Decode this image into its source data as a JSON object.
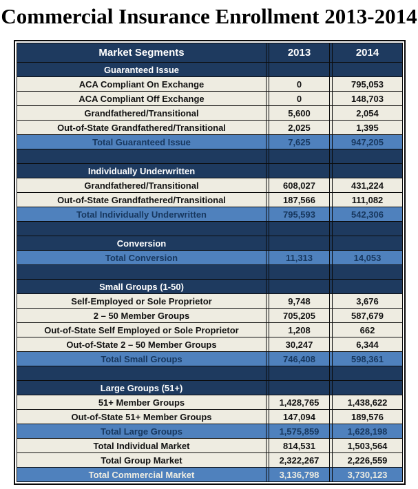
{
  "title": "Commercial Insurance Enrollment 2013-2014",
  "colors": {
    "navy": "#1E3A5F",
    "total_row_blue": "#4F81BD",
    "data_row_cream": "#EEECE1",
    "data_text": "#121212",
    "total_text": "#17375E",
    "grand_total_text": "#EFEDE2",
    "border": "#0B0B0B",
    "header_text": "#FFFFFF"
  },
  "table": {
    "columns": [
      "Market Segments",
      "2013",
      "2014"
    ],
    "rows": [
      {
        "type": "section",
        "label": "Guaranteed Issue",
        "y2013": "",
        "y2014": ""
      },
      {
        "type": "data",
        "label": "ACA Compliant On Exchange",
        "y2013": "0",
        "y2014": "795,053"
      },
      {
        "type": "data",
        "label": "ACA Compliant Off Exchange",
        "y2013": "0",
        "y2014": "148,703"
      },
      {
        "type": "data",
        "label": "Grandfathered/Transitional",
        "y2013": "5,600",
        "y2014": "2,054"
      },
      {
        "type": "data",
        "label": "Out-of-State Grandfathered/Transitional",
        "y2013": "2,025",
        "y2014": "1,395"
      },
      {
        "type": "total",
        "label": "Total Guaranteed Issue",
        "y2013": "7,625",
        "y2014": "947,205"
      },
      {
        "type": "spacer",
        "label": "",
        "y2013": "",
        "y2014": ""
      },
      {
        "type": "section",
        "label": "Individually Underwritten",
        "y2013": "",
        "y2014": ""
      },
      {
        "type": "data",
        "label": "Grandfathered/Transitional",
        "y2013": "608,027",
        "y2014": "431,224"
      },
      {
        "type": "data",
        "label": "Out-of-State Grandfathered/Transitional",
        "y2013": "187,566",
        "y2014": "111,082"
      },
      {
        "type": "total",
        "label": "Total Individually Underwritten",
        "y2013": "795,593",
        "y2014": "542,306"
      },
      {
        "type": "spacer",
        "label": "",
        "y2013": "",
        "y2014": ""
      },
      {
        "type": "section",
        "label": "Conversion",
        "y2013": "",
        "y2014": ""
      },
      {
        "type": "total",
        "label": "Total Conversion",
        "y2013": "11,313",
        "y2014": "14,053"
      },
      {
        "type": "spacer",
        "label": "",
        "y2013": "",
        "y2014": ""
      },
      {
        "type": "section",
        "label": "Small Groups (1-50)",
        "y2013": "",
        "y2014": ""
      },
      {
        "type": "data",
        "label": "Self-Employed or Sole Proprietor",
        "y2013": "9,748",
        "y2014": "3,676"
      },
      {
        "type": "data",
        "label": "2 – 50 Member Groups",
        "y2013": "705,205",
        "y2014": "587,679"
      },
      {
        "type": "data",
        "label": "Out-of-State Self Employed or Sole Proprietor",
        "y2013": "1,208",
        "y2014": "662"
      },
      {
        "type": "data",
        "label": "Out-of-State 2 – 50 Member Groups",
        "y2013": "30,247",
        "y2014": "6,344"
      },
      {
        "type": "total",
        "label": "Total Small Groups",
        "y2013": "746,408",
        "y2014": "598,361"
      },
      {
        "type": "spacer",
        "label": "",
        "y2013": "",
        "y2014": ""
      },
      {
        "type": "section",
        "label": "Large Groups (51+)",
        "y2013": "",
        "y2014": ""
      },
      {
        "type": "data",
        "label": "51+ Member Groups",
        "y2013": "1,428,765",
        "y2014": "1,438,622"
      },
      {
        "type": "data",
        "label": "Out-of-State 51+ Member Groups",
        "y2013": "147,094",
        "y2014": "189,576"
      },
      {
        "type": "total",
        "label": "Total Large Groups",
        "y2013": "1,575,859",
        "y2014": "1,628,198"
      },
      {
        "type": "data",
        "label": "Total Individual Market",
        "y2013": "814,531",
        "y2014": "1,503,564"
      },
      {
        "type": "data",
        "label": "Total Group Market",
        "y2013": "2,322,267",
        "y2014": "2,226,559"
      },
      {
        "type": "grand_total",
        "label": "Total Commercial Market",
        "y2013": "3,136,798",
        "y2014": "3,730,123"
      }
    ]
  }
}
